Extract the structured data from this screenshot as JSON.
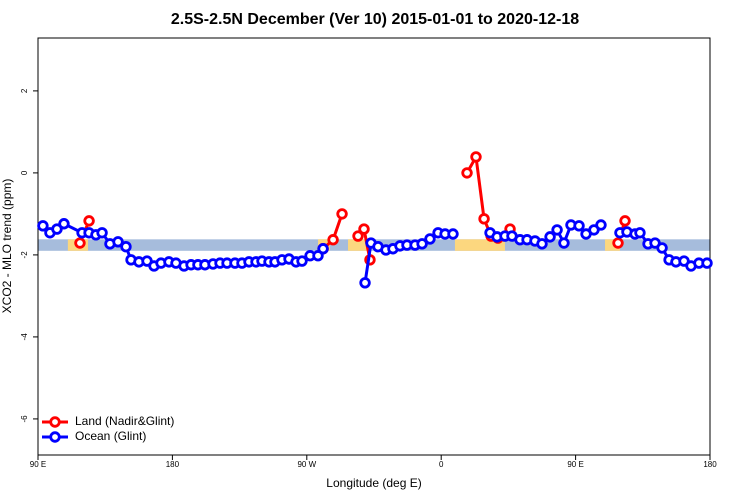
{
  "chart_data": {
    "type": "line",
    "title": "2.5S-2.5N December (Ver 10)   2015-01-01 to 2020-12-18",
    "x_label": "Longitude (deg E)",
    "y_label": "XCO2 - MLO trend (ppm)",
    "xlim": [
      90,
      540
    ],
    "ylim": [
      -6.88,
      3.29
    ],
    "xticks": [
      {
        "value": 90,
        "label": "90 E"
      },
      180,
      {
        "value": 270,
        "label": "90 W"
      },
      {
        "value": 360,
        "label": "0"
      },
      {
        "value": 450,
        "label": "90 E"
      },
      {
        "value": 540,
        "label": "180"
      }
    ],
    "yticks": [
      -6,
      -4,
      -2,
      0,
      2
    ],
    "legend": "bottom-left",
    "band": {
      "range": [
        -1.9,
        -1.62
      ],
      "color": "#a6bcdc",
      "highlight_color": "#fcd77f",
      "highlights": [
        [
          110,
          123.5
        ],
        [
          277.5,
          285.5
        ],
        [
          297.6,
          312.3
        ],
        [
          369.2,
          402.7
        ],
        [
          469.7,
          479.7
        ]
      ]
    },
    "series": [
      {
        "name": "Land (Nadir&Glint)",
        "color": "#ff0000",
        "x": [
          118.1,
          124.2,
          null,
          280.9,
          287.6,
          293.6,
          null,
          304.3,
          308.3,
          312.3,
          null,
          377.3,
          383.3,
          388.7,
          393.4,
          398.0,
          406.1,
          null,
          478.4,
          483.1
        ],
        "values": [
          -1.71,
          -1.17,
          null,
          -1.85,
          -1.63,
          -1.0,
          null,
          -1.54,
          -1.37,
          -2.12,
          null,
          0,
          0.39,
          -1.12,
          -1.54,
          -1.59,
          -1.37,
          null,
          -1.71,
          -1.17
        ]
      },
      {
        "name": "Ocean (Glint)",
        "color": "#0000ff",
        "x": [
          93.3,
          98.0,
          102.7,
          107.4,
          119.5,
          124.2,
          128.8,
          132.9,
          138.2,
          143.6,
          148.9,
          152.3,
          157.6,
          163.0,
          167.7,
          172.4,
          177.7,
          182.4,
          187.8,
          192.5,
          197.1,
          201.8,
          207.2,
          211.9,
          216.6,
          221.9,
          226.6,
          231.3,
          236.0,
          240.0,
          244.7,
          248.7,
          253.4,
          258.1,
          262.8,
          266.8,
          272.2,
          277.5,
          280.9,
          null,
          309.0,
          313.0,
          317.7,
          323.0,
          327.7,
          332.4,
          337.1,
          342.5,
          347.2,
          352.5,
          357.9,
          362.6,
          367.9,
          null,
          392.7,
          397.4,
          402.7,
          407.4,
          412.8,
          417.5,
          422.8,
          427.5,
          432.9,
          437.6,
          442.2,
          446.9,
          452.3,
          457.0,
          462.3,
          467.0,
          null,
          479.7,
          484.4,
          489.8,
          493.1,
          498.5,
          503.2,
          507.9,
          512.6,
          517.2,
          522.6,
          527.3,
          532.6,
          538.0
        ],
        "values": [
          -1.29,
          -1.46,
          -1.37,
          -1.24,
          -1.46,
          -1.46,
          -1.51,
          -1.46,
          -1.73,
          -1.68,
          -1.8,
          -2.12,
          -2.17,
          -2.15,
          -2.27,
          -2.2,
          -2.17,
          -2.2,
          -2.27,
          -2.24,
          -2.24,
          -2.24,
          -2.22,
          -2.2,
          -2.2,
          -2.2,
          -2.2,
          -2.17,
          -2.17,
          -2.15,
          -2.17,
          -2.17,
          -2.12,
          -2.1,
          -2.17,
          -2.15,
          -2.02,
          -2.02,
          -1.85,
          null,
          -2.68,
          -1.71,
          -1.8,
          -1.88,
          -1.85,
          -1.78,
          -1.76,
          -1.76,
          -1.73,
          -1.61,
          -1.46,
          -1.49,
          -1.49,
          null,
          -1.46,
          -1.56,
          -1.54,
          -1.54,
          -1.63,
          -1.63,
          -1.66,
          -1.73,
          -1.56,
          -1.39,
          -1.71,
          -1.27,
          -1.29,
          -1.49,
          -1.39,
          -1.27,
          null,
          -1.46,
          -1.44,
          -1.49,
          -1.46,
          -1.73,
          -1.71,
          -1.83,
          -2.12,
          -2.17,
          -2.15,
          -2.27,
          -2.2,
          -2.2
        ]
      }
    ]
  }
}
